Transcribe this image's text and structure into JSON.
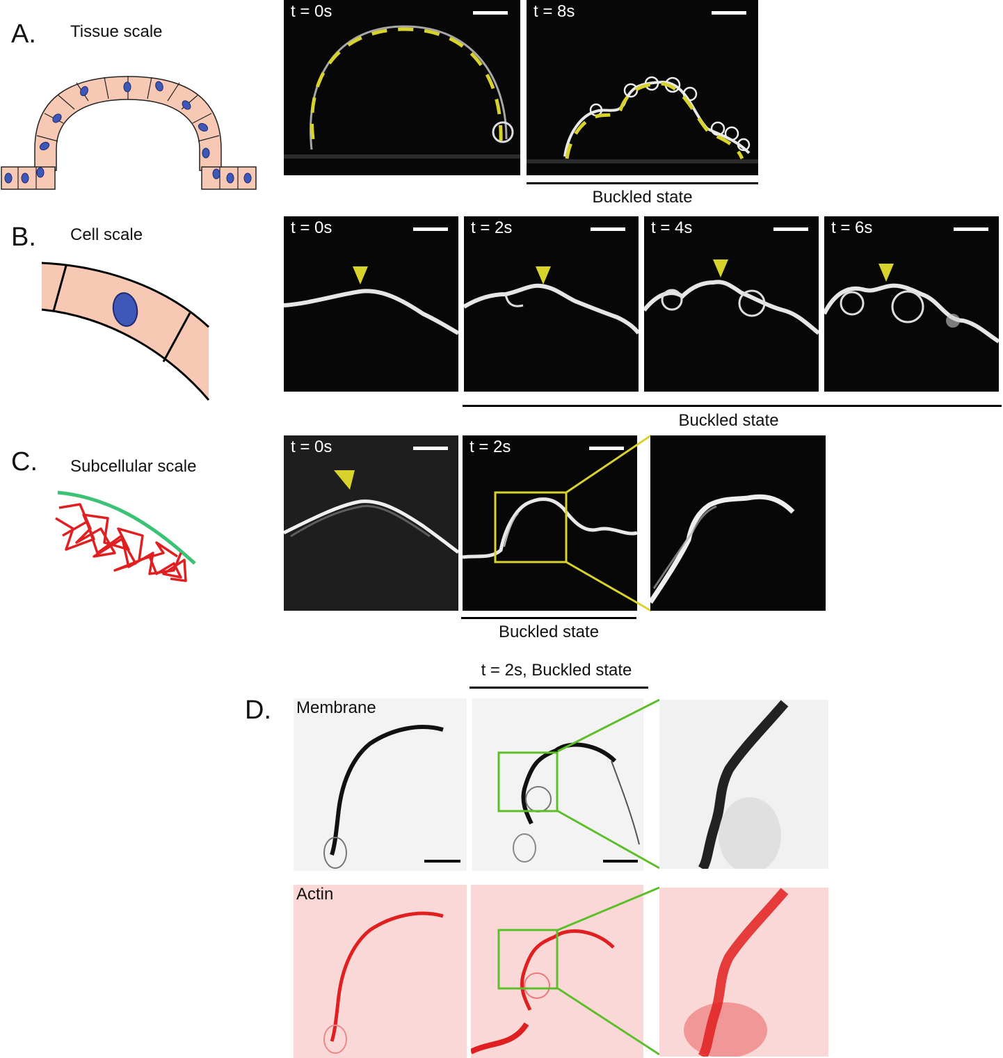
{
  "figure": {
    "panels": {
      "A": {
        "letter": "A.",
        "title": "Tissue scale"
      },
      "B": {
        "letter": "B.",
        "title": "Cell scale"
      },
      "C": {
        "letter": "C.",
        "title": "Subcellular scale"
      },
      "D": {
        "letter": "D."
      }
    },
    "panelA_images": [
      {
        "time": "t = 0s"
      },
      {
        "time": "t = 8s"
      }
    ],
    "panelA_caption": "Buckled state",
    "panelB_images": [
      {
        "time": "t = 0s"
      },
      {
        "time": "t = 2s"
      },
      {
        "time": "t = 4s"
      },
      {
        "time": "t = 6s"
      }
    ],
    "panelB_caption": "Buckled state",
    "panelC_images": [
      {
        "time": "t = 0s"
      },
      {
        "time": "t = 2s"
      }
    ],
    "panelC_caption": "Buckled state",
    "panelD_header": "t = 2s, Buckled state",
    "panelD_channels": {
      "membrane": "Membrane",
      "actin": "Actin"
    }
  },
  "colors": {
    "tissue_fill": "#f7c9b4",
    "nucleus": "#3f58b8",
    "outline_yellow": "#d8d22c",
    "membrane_green": "#3cc275",
    "actin_red": "#e02020",
    "zoom_box_green": "#5cbf2a",
    "actin_bg": "#fbd8d8"
  }
}
